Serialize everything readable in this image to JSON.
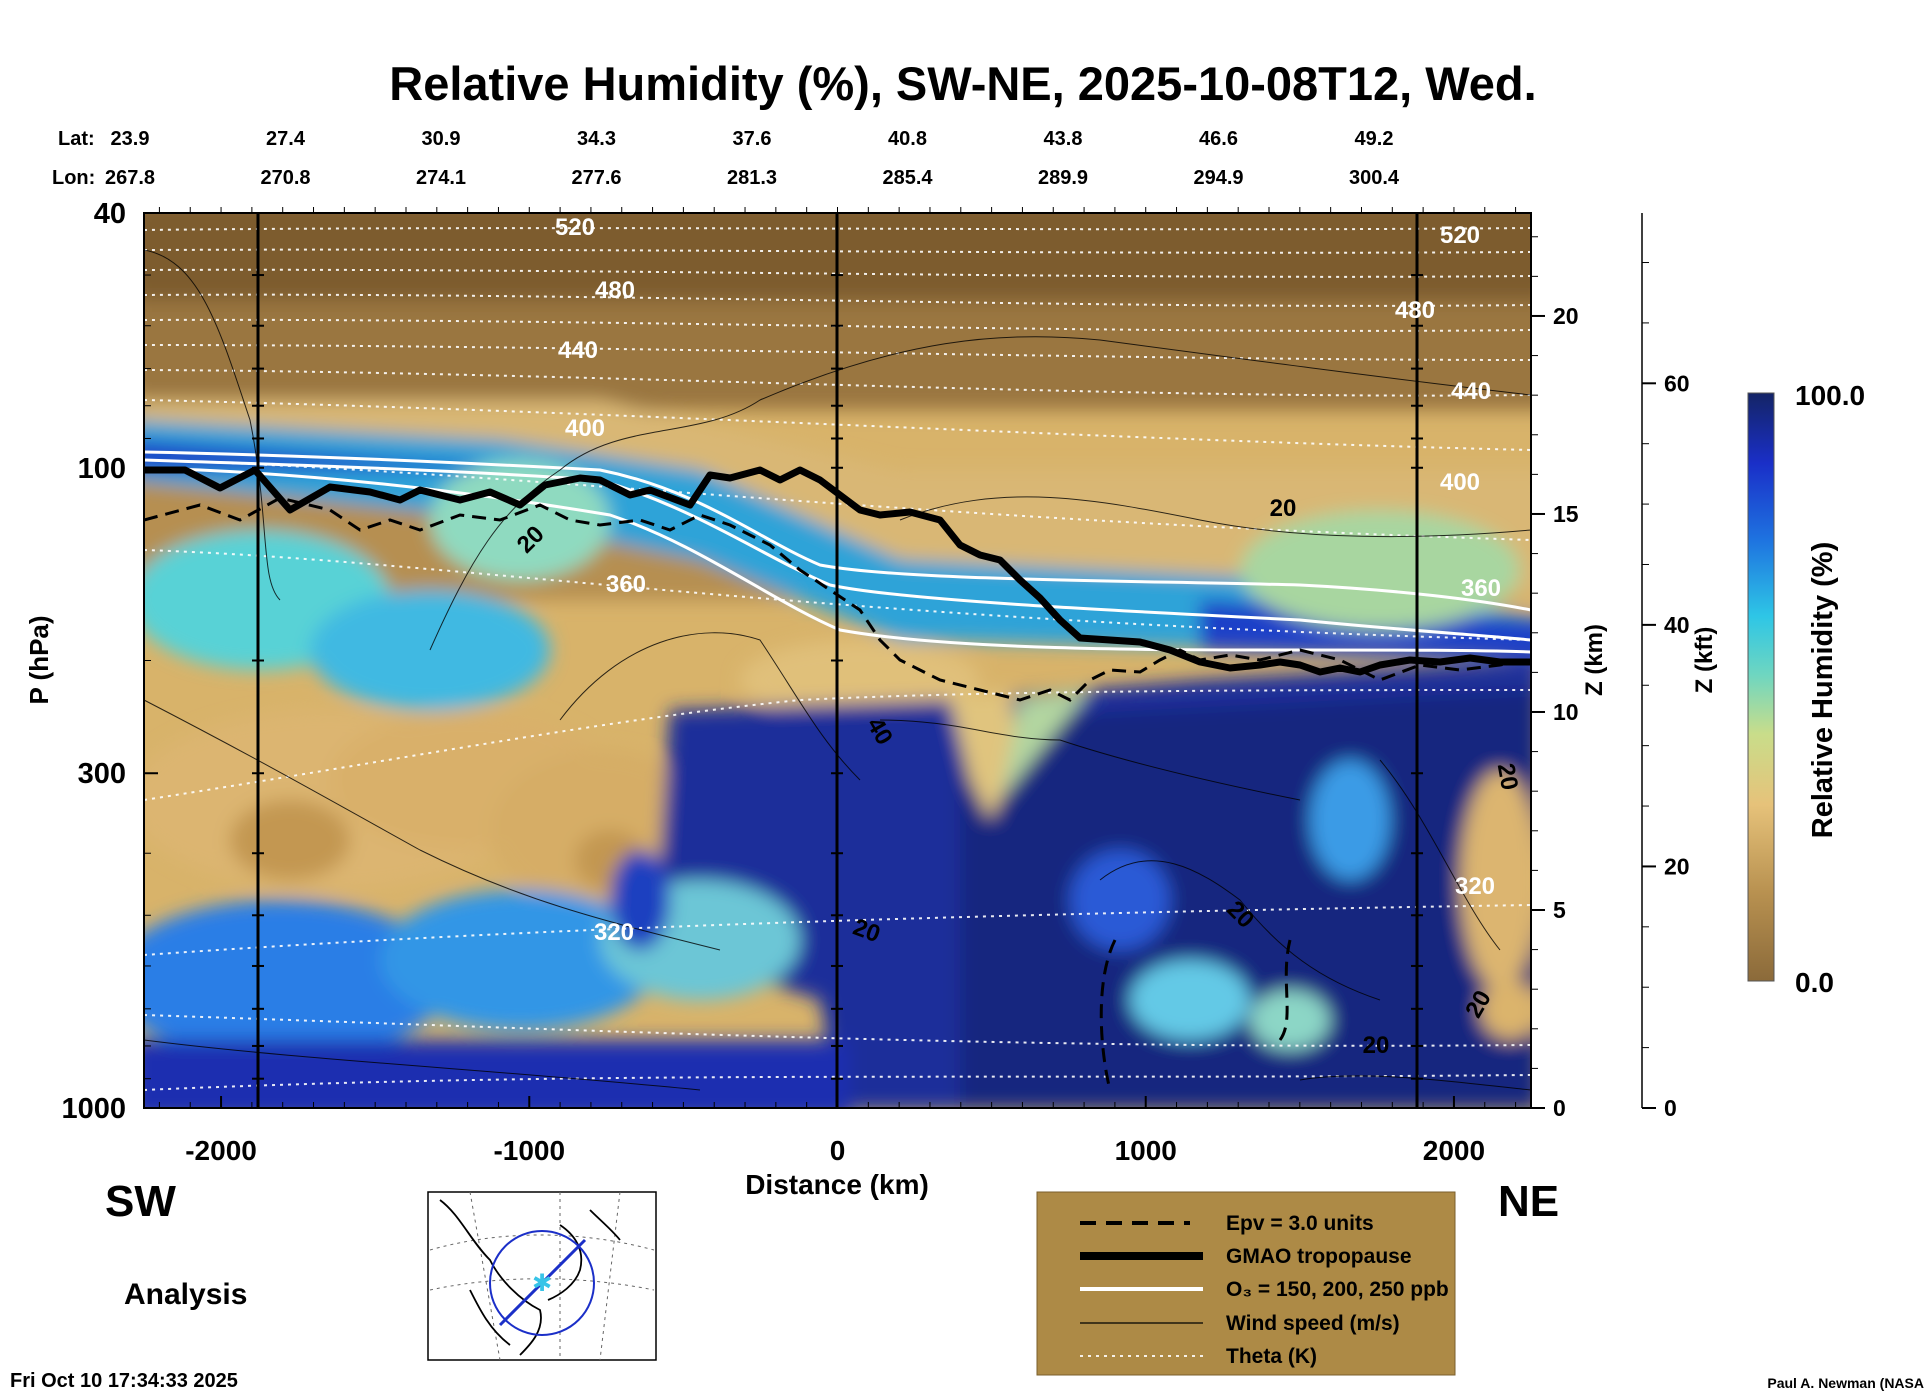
{
  "chart_data": {
    "type": "heatmap",
    "title": "Relative Humidity (%), SW-NE, 2025-10-08T12, Wed.",
    "xlabel": "Distance (km)",
    "ylabel": "P (hPa)",
    "y2label": "Z (km)",
    "y3label": "Z (kft)",
    "colorbar_label": "Relative Humidity (%)",
    "colorbar_max": "100.0",
    "colorbar_min": "0.0",
    "xlim": [
      -2250,
      2250
    ],
    "ylim_hpa": [
      1000,
      40
    ],
    "x_ticks": [
      "-2000",
      "-1000",
      "0",
      "1000",
      "2000"
    ],
    "y_ticks": [
      "40",
      "100",
      "300",
      "1000"
    ],
    "z_km_ticks": [
      "20",
      "15",
      "10",
      "5",
      "0"
    ],
    "z_kft_ticks": [
      "60",
      "40",
      "20",
      "0"
    ],
    "lat_label": "Lat:",
    "lon_label": "Lon:",
    "lat": [
      "23.9",
      "27.4",
      "30.9",
      "34.3",
      "37.6",
      "40.8",
      "43.8",
      "46.6",
      "49.2"
    ],
    "lon": [
      "267.8",
      "270.8",
      "274.1",
      "277.6",
      "281.3",
      "285.4",
      "289.9",
      "294.9",
      "300.4"
    ],
    "theta_labels_left": [
      "520",
      "480",
      "440",
      "400",
      "360",
      "320"
    ],
    "theta_labels_right": [
      "520",
      "480",
      "440",
      "400",
      "360",
      "320"
    ],
    "wind_labels": [
      "20",
      "20",
      "40",
      "20",
      "20",
      "20",
      "20",
      "20"
    ],
    "legend": [
      "Epv = 3.0 units",
      "GMAO tropopause",
      "O₃ = 150, 200, 250 ppb",
      "Wind speed (m/s)",
      "Theta (K)"
    ],
    "left_end": "SW",
    "right_end": "NE",
    "mode": "Analysis",
    "timestamp": "Fri Oct 10 17:34:33 2025",
    "credit": "Paul A. Newman (NASA"
  },
  "colors": {
    "dry": "#8f6a3a",
    "moist": "#142878",
    "legend_bg": "#ad8a46"
  }
}
